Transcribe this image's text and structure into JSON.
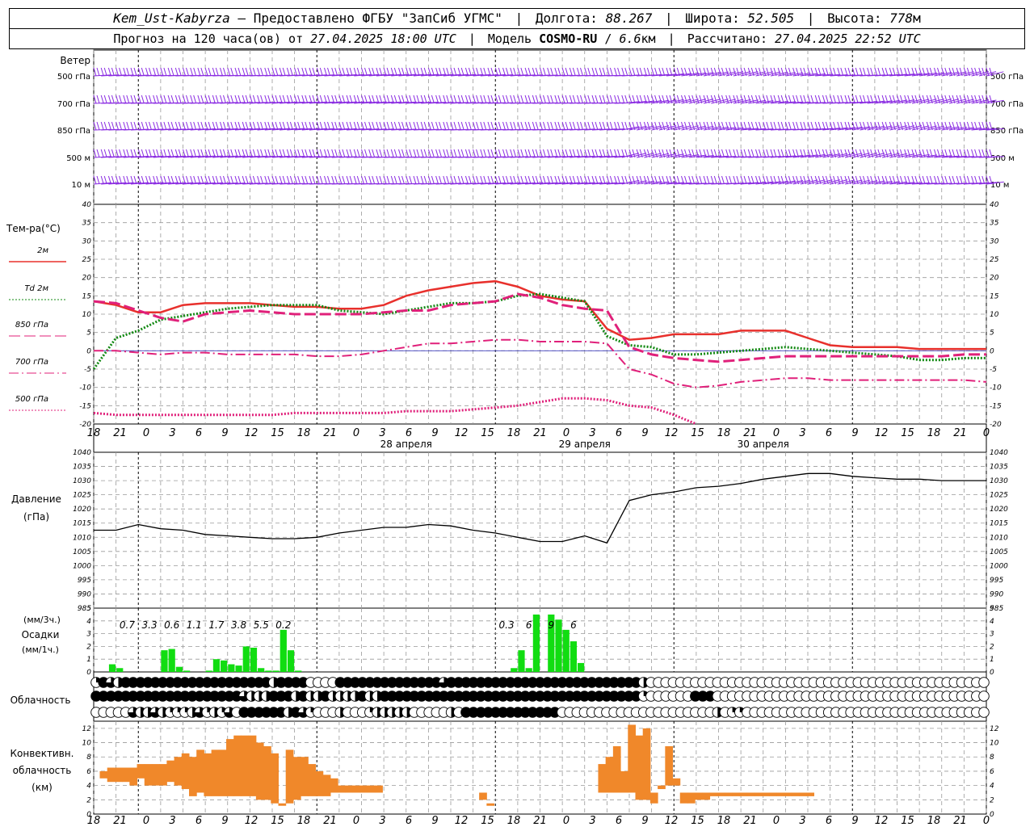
{
  "header": {
    "station": "Kem_Ust-Kabyrza",
    "provider": "Предоставлено ФГБУ \"ЗапСиб УГМС\"",
    "lon_label": "Долгота:",
    "lon": "88.267",
    "lat_label": "Широта:",
    "lat": "52.505",
    "alt_label": "Высота:",
    "alt": "778",
    "alt_unit": "м",
    "forecast_prefix": "Прогноз на 120 часа(ов) от",
    "forecast_start": "27.04.2025 18:00 UTC",
    "model_label": "Модель",
    "model": "COSMO-RU",
    "resolution": "6.6",
    "resolution_unit": "км",
    "computed_label": "Рассчитано:",
    "computed": "27.04.2025 22:52 UTC"
  },
  "colors": {
    "t2m": "#e8302c",
    "td2m": "#118811",
    "t850": "#e0207a",
    "t700": "#e0207a",
    "t500": "#e0207a",
    "wind": "#8a2be2",
    "pressure": "#000000",
    "precip": "#11dd11",
    "convective": "#f0882a",
    "grid": "#999999"
  },
  "chart_data": [
    {
      "type": "wind_barbs",
      "title": "Ветер",
      "levels": [
        "500 гПа",
        "700 гПа",
        "850 гПа",
        "500 м",
        "10  м"
      ]
    },
    {
      "type": "line",
      "ylabel": "Тем-ра(°C)",
      "ylim": [
        -20,
        40
      ],
      "yticks": [
        -20,
        -15,
        -10,
        -5,
        0,
        5,
        10,
        15,
        20,
        25,
        30,
        35,
        40
      ],
      "x_hours": [
        0,
        3,
        6,
        9,
        12,
        15,
        18,
        21,
        24,
        27,
        30,
        33,
        36,
        39,
        42,
        45,
        48,
        51,
        54,
        57,
        60,
        63,
        66,
        69,
        72,
        75,
        78,
        81,
        84,
        87,
        90,
        93,
        96,
        99,
        102,
        105,
        108,
        111,
        114,
        117,
        120
      ],
      "series": [
        {
          "name": "2м",
          "key": "t2m",
          "style": "solid",
          "values": [
            13.5,
            12.5,
            10.5,
            10.5,
            12.5,
            13,
            13,
            13,
            12.5,
            12,
            12,
            11.5,
            11.5,
            12.5,
            15,
            16.5,
            17.5,
            18.5,
            19,
            17.5,
            15,
            14,
            13.5,
            6,
            3,
            3.5,
            4.5,
            4.5,
            4.5,
            5.5,
            5.5,
            5.5,
            3.5,
            1.5,
            1,
            1,
            1,
            0.5,
            0.5,
            0.5,
            0.5
          ]
        },
        {
          "name": "Td  2м",
          "key": "td2m",
          "style": "dotted",
          "values": [
            -5,
            3.5,
            5.5,
            8.5,
            9.5,
            10.5,
            11.5,
            12,
            12.5,
            12.5,
            12.5,
            11,
            10.5,
            10,
            11,
            12,
            13,
            13,
            13.5,
            15,
            15.5,
            14.5,
            13.5,
            4,
            1.5,
            1,
            -1,
            -1,
            -0.5,
            0,
            0.5,
            1,
            0.5,
            0,
            -0.5,
            -1,
            -1.5,
            -2.5,
            -2.5,
            -2,
            -2
          ]
        },
        {
          "name": "850 гПа",
          "key": "t850",
          "style": "longdash",
          "values": [
            13.5,
            13,
            11,
            9,
            8,
            10,
            10.5,
            11,
            10.5,
            10,
            10,
            10,
            10,
            10.5,
            11,
            11,
            12.5,
            13,
            13.5,
            15.5,
            14.5,
            12.5,
            11.5,
            11,
            1,
            -1,
            -2,
            -2.5,
            -3,
            -2.5,
            -2,
            -1.5,
            -1.5,
            -1.5,
            -1.5,
            -1.5,
            -1.5,
            -1.5,
            -1.5,
            -1,
            -1
          ]
        },
        {
          "name": "700 гПа",
          "key": "t700",
          "style": "dashdot",
          "values": [
            0,
            0,
            -0.5,
            -1,
            -0.5,
            -0.5,
            -1,
            -1,
            -1,
            -1,
            -1.5,
            -1.5,
            -1,
            0,
            1,
            2,
            2,
            2.5,
            3,
            3,
            2.5,
            2.5,
            2.5,
            2,
            -5,
            -6.5,
            -9,
            -10,
            -9.5,
            -8.5,
            -8,
            -7.5,
            -7.5,
            -8,
            -8,
            -8,
            -8,
            -8,
            -8,
            -8,
            -8.5
          ]
        },
        {
          "name": "500 гПа",
          "key": "t500",
          "style": "dotted",
          "values": [
            -17,
            -17.5,
            -17.5,
            -17.5,
            -17.5,
            -17.5,
            -17.5,
            -17.5,
            -17.5,
            -17,
            -17,
            -17,
            -17,
            -17,
            -16.5,
            -16.5,
            -16.5,
            -16,
            -15.5,
            -15,
            -14,
            -13,
            -13,
            -13.5,
            -15,
            -15.5,
            -17.5,
            -20,
            null,
            null,
            null,
            null,
            null,
            null,
            null,
            null,
            null,
            null,
            null,
            null,
            null
          ]
        }
      ]
    },
    {
      "type": "line",
      "ylabel": "Давление",
      "yunit": "(гПа)",
      "ylim": [
        985,
        1040
      ],
      "yticks": [
        985,
        990,
        995,
        1000,
        1005,
        1010,
        1015,
        1020,
        1025,
        1030,
        1035,
        1040
      ],
      "x_hours": [
        0,
        3,
        6,
        9,
        12,
        15,
        18,
        21,
        24,
        27,
        30,
        33,
        36,
        39,
        42,
        45,
        48,
        51,
        54,
        57,
        60,
        63,
        66,
        69,
        72,
        75,
        78,
        81,
        84,
        87,
        90,
        93,
        96,
        99,
        102,
        105,
        108,
        111,
        114,
        117,
        120
      ],
      "series": [
        {
          "name": "",
          "key": "pressure",
          "values": [
            1012.5,
            1012.5,
            1014.5,
            1013,
            1012.5,
            1011,
            1010.5,
            1010,
            1009.5,
            1009.5,
            1010,
            1011.5,
            1012.5,
            1013.5,
            1013.5,
            1014.5,
            1014,
            1012.5,
            1011.5,
            1010,
            1008.5,
            1008.5,
            1010.5,
            1008,
            1023,
            1025,
            1026,
            1027.5,
            1028,
            1029,
            1030.5,
            1031.5,
            1032.5,
            1032.5,
            1031.5,
            1031,
            1030.5,
            1030.5,
            1030,
            1030,
            1030
          ]
        }
      ]
    },
    {
      "type": "bar",
      "ylabel": "Осадки",
      "yunit_top": "(мм/3ч.)",
      "yunit_bottom": "(мм/1ч.)",
      "ylim": [
        0,
        5
      ],
      "yticks": [
        0,
        1,
        2,
        3,
        4,
        5
      ],
      "hourly_start_hour": 3,
      "hourly_values": [
        0.6,
        0.3,
        0,
        0,
        0,
        0,
        0,
        1.7,
        1.8,
        0.4,
        0.1,
        0,
        0,
        0.1,
        1,
        0.9,
        0.6,
        0.5,
        2,
        1.9,
        0.3,
        0.1,
        0.1,
        3.3,
        1.7,
        0.1
      ],
      "hourly2_start_hour": 57,
      "hourly2_values": [
        0.3,
        1.7,
        0.3,
        4.5,
        0,
        4.5,
        4.1,
        3.3,
        2.4,
        0.7
      ],
      "totals_3h": [
        {
          "hour": 4.5,
          "label": "0.7"
        },
        {
          "hour": 7.5,
          "label": "3.3"
        },
        {
          "hour": 10.5,
          "label": "0.6"
        },
        {
          "hour": 13.5,
          "label": "1.1"
        },
        {
          "hour": 16.5,
          "label": "1.7"
        },
        {
          "hour": 19.5,
          "label": "3.8"
        },
        {
          "hour": 22.5,
          "label": "5.5"
        },
        {
          "hour": 25.5,
          "label": "0.2"
        },
        {
          "hour": 55.5,
          "label": "0.3"
        },
        {
          "hour": 58.5,
          "label": "6"
        },
        {
          "hour": 61.5,
          "label": "9"
        },
        {
          "hour": 64.5,
          "label": "6"
        }
      ]
    },
    {
      "type": "cloud_symbols",
      "ylabel": "Облачность",
      "rows_cover_0to4": [
        "1432444444444444444444442444400004444444444444434444444444444444444444444420000000000000000000000000000000000000000000000000",
        "4444444444444444444432224442422422224224444444444444444444444444444444444410000004440000000000000000000000000000000000000000",
        "0000032232111231213044444424310002000122222000002044444444444440000000000000000000002011000000000000000000000000000000000000"
      ]
    },
    {
      "type": "range_bar",
      "ylabel": "Конвективн.",
      "ylabel2": "облачность",
      "yunit": "(км)",
      "ylim": [
        0,
        13
      ],
      "yticks": [
        0,
        2,
        4,
        6,
        8,
        10,
        12
      ],
      "bars_bottom_top_km": [
        [
          5,
          6
        ],
        [
          4.5,
          6.5
        ],
        [
          4.5,
          6.5
        ],
        [
          4.5,
          6.5
        ],
        [
          4,
          6.5
        ],
        [
          5,
          7
        ],
        [
          4,
          7
        ],
        [
          4,
          7
        ],
        [
          4,
          7
        ],
        [
          4.5,
          7.5
        ],
        [
          4,
          8
        ],
        [
          3.5,
          8.5
        ],
        [
          2.5,
          8
        ],
        [
          3,
          9
        ],
        [
          2.5,
          8.5
        ],
        [
          2.5,
          9
        ],
        [
          2.5,
          9
        ],
        [
          2.5,
          10.5
        ],
        [
          2.5,
          11
        ],
        [
          2.5,
          11
        ],
        [
          2.5,
          11
        ],
        [
          2,
          10
        ],
        [
          2,
          9.5
        ],
        [
          1.5,
          8.5
        ],
        [
          1.5,
          1.5
        ],
        [
          1.5,
          9
        ],
        [
          2,
          8
        ],
        [
          2.5,
          8
        ],
        [
          2.5,
          7
        ],
        [
          2.5,
          6
        ],
        [
          2.5,
          5.5
        ],
        [
          3,
          5
        ],
        [
          3,
          4
        ],
        [
          3,
          4
        ],
        [
          3,
          4
        ],
        [
          3,
          4
        ],
        [
          3,
          4
        ],
        [
          3,
          4
        ],
        null,
        null,
        null,
        null,
        null,
        null,
        null,
        null,
        null,
        null,
        null,
        null,
        null,
        [
          2,
          3
        ],
        [
          1.5,
          1.5
        ],
        null,
        null,
        null,
        null,
        null,
        null,
        null,
        null,
        null,
        null,
        null,
        null,
        null,
        null,
        [
          3,
          7
        ],
        [
          3,
          8
        ],
        [
          3,
          9.5
        ],
        [
          3,
          6
        ],
        [
          3,
          12.5
        ],
        [
          2,
          11
        ],
        [
          2,
          12
        ],
        [
          1.5,
          3
        ],
        [
          3.5,
          4
        ],
        [
          4,
          9.5
        ],
        [
          4,
          5
        ],
        [
          1.5,
          3
        ],
        [
          1.5,
          3
        ],
        [
          2,
          3
        ],
        [
          2,
          3
        ],
        [
          2.5,
          3
        ],
        [
          2.5,
          3
        ],
        [
          2.5,
          3
        ],
        [
          2.5,
          3
        ],
        [
          2.5,
          3
        ],
        [
          2.5,
          3
        ],
        [
          2.5,
          3
        ],
        [
          2.5,
          3
        ],
        [
          2.5,
          3
        ],
        [
          2.5,
          3
        ],
        [
          2.5,
          3
        ],
        [
          2.5,
          3
        ],
        [
          2.5,
          3
        ],
        [
          2.5,
          3
        ]
      ]
    }
  ],
  "time_axis": {
    "hour_labels": [
      "18",
      "21",
      "0",
      "3",
      "6",
      "9",
      "12",
      "15",
      "18",
      "21",
      "0",
      "3",
      "6",
      "9",
      "12",
      "15",
      "18",
      "21",
      "0",
      "3",
      "6",
      "9",
      "12",
      "15",
      "18",
      "21",
      "0",
      "3",
      "6",
      "9",
      "12",
      "15",
      "18",
      "21",
      "0"
    ],
    "day_labels": [
      {
        "hour": 42,
        "label": "28 апреля"
      },
      {
        "hour": 66,
        "label": "29 апреля"
      },
      {
        "hour": 90,
        "label": "30 апреля"
      }
    ]
  }
}
